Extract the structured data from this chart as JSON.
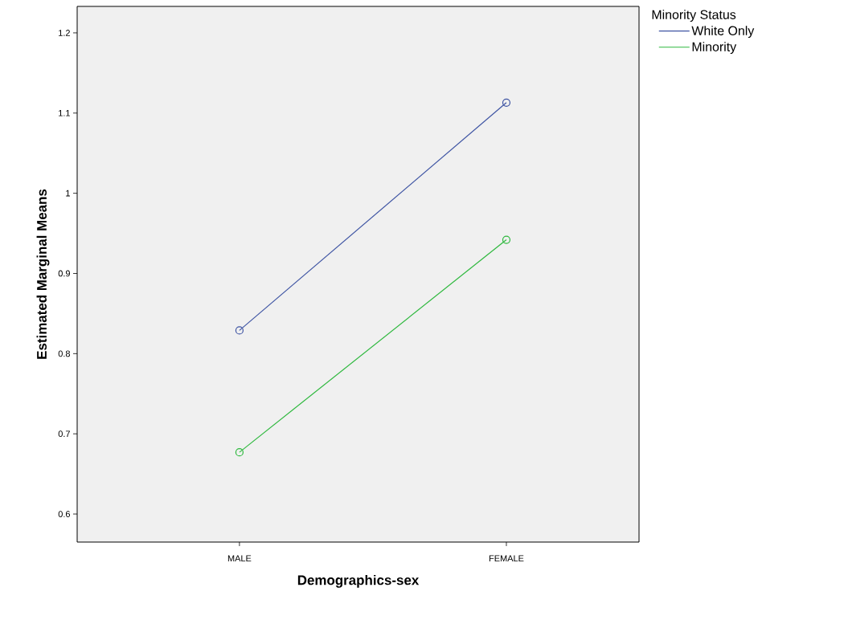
{
  "chart_data": {
    "type": "line",
    "xlabel": "Demographics-sex",
    "ylabel": "Estimated Marginal Means",
    "legend_title": "Minority Status",
    "categories": [
      "MALE",
      "FEMALE"
    ],
    "series": [
      {
        "name": "White Only",
        "color": "#3e54a3",
        "values": [
          0.829,
          1.113
        ]
      },
      {
        "name": "Minority",
        "color": "#2db83d",
        "values": [
          0.677,
          0.942
        ]
      }
    ],
    "ylim": [
      0.565,
      1.233
    ],
    "yticks": [
      0.6,
      0.7,
      0.8,
      0.9,
      1,
      1.1,
      1.2
    ],
    "marker": "circle",
    "legend": "top right",
    "grid": false
  }
}
